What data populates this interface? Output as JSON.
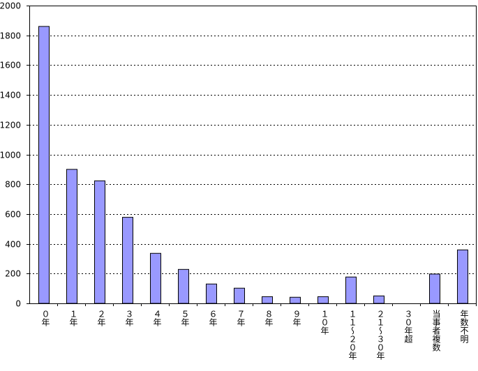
{
  "chart_data": {
    "type": "bar",
    "title": "",
    "xlabel": "",
    "ylabel": "",
    "ylim": [
      0,
      2000
    ],
    "yticks": [
      0,
      200,
      400,
      600,
      800,
      1000,
      1200,
      1400,
      1600,
      1800,
      2000
    ],
    "grid": "horizontal dotted",
    "legend": "none",
    "bar_color": "#9999FF",
    "categories": [
      "０年",
      "１年",
      "２年",
      "３年",
      "４年",
      "５年",
      "６年",
      "７年",
      "８年",
      "９年",
      "１０年",
      "１１～２０年",
      "２１～３０年",
      "３０年超",
      "当事者複数",
      "年数不明"
    ],
    "values": [
      1860,
      900,
      823,
      578,
      336,
      228,
      130,
      102,
      45,
      41,
      45,
      177,
      50,
      0,
      197,
      359
    ]
  }
}
